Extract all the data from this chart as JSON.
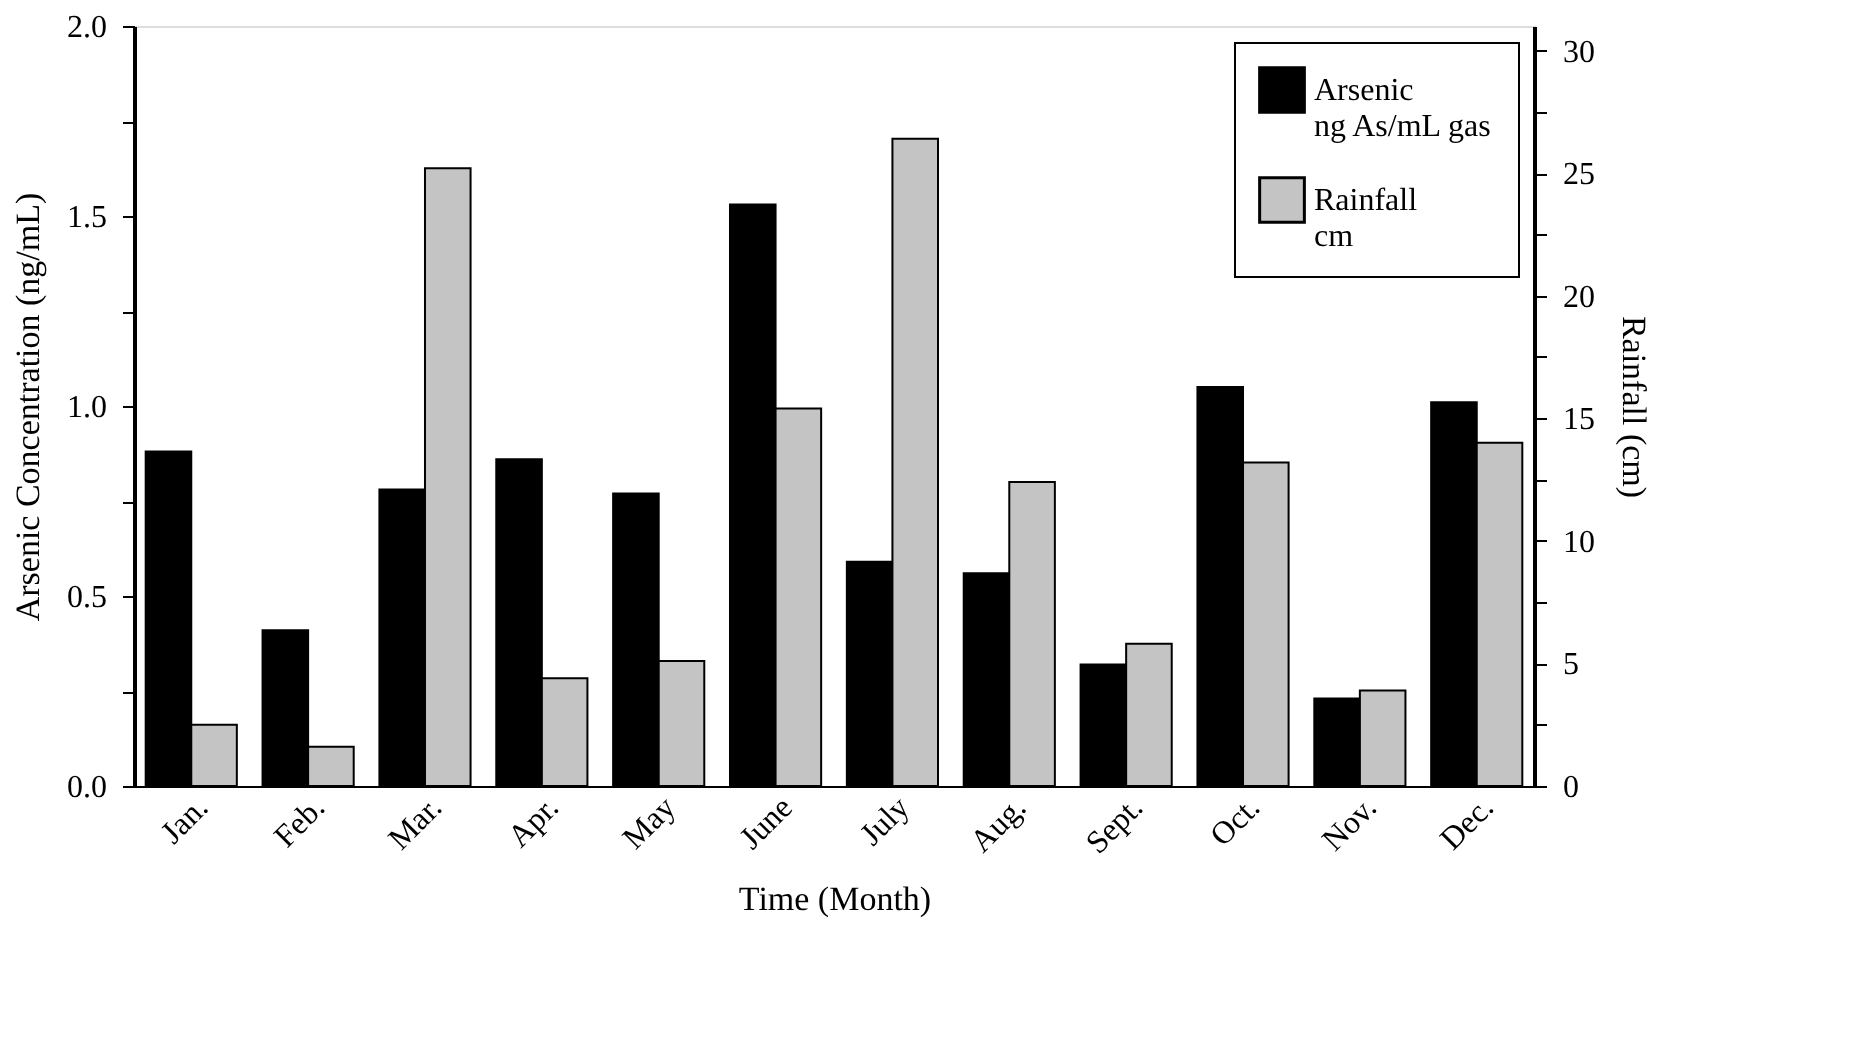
{
  "chart_data": {
    "type": "bar",
    "xlabel": "Time (Month)",
    "ylabel": "Arsenic Concentration (ng/mL)",
    "y2label": "Rainfall (cm)",
    "categories": [
      "Jan.",
      "Feb.",
      "Mar.",
      "Apr.",
      "May",
      "June",
      "July",
      "Aug.",
      "Sept.",
      "Oct.",
      "Nov.",
      "Dec."
    ],
    "series": [
      {
        "name": "Arsenic\nng As/mL gas",
        "color": "#000000",
        "values": [
          0.88,
          0.41,
          0.78,
          0.86,
          0.77,
          1.53,
          0.59,
          0.56,
          0.32,
          1.05,
          0.23,
          1.01
        ]
      },
      {
        "name": "Rainfall\ncm",
        "color": "#c4c4c4",
        "axis": "y2",
        "values": [
          2.5,
          1.6,
          25.2,
          4.4,
          5.1,
          15.4,
          26.4,
          12.4,
          5.8,
          13.2,
          3.9,
          14.0
        ]
      }
    ],
    "ylim": [
      0,
      2.0
    ],
    "yticks": [
      {
        "value": 0,
        "label": "0.0"
      },
      {
        "value": 0.25,
        "label": null
      },
      0.5,
      {
        "value": 0.75,
        "label": null
      },
      {
        "value": 1,
        "label": "1.0"
      },
      {
        "value": 1.25,
        "label": null
      },
      1.5,
      {
        "value": 1.75,
        "label": null
      },
      {
        "value": 2,
        "label": "2.0"
      }
    ],
    "y2lim": [
      0,
      31
    ],
    "y2ticks": [
      0,
      {
        "value": 2.5,
        "label": null
      },
      5,
      {
        "value": 7.5,
        "label": null
      },
      10,
      {
        "value": 12.5,
        "label": null
      },
      15,
      {
        "value": 17.5,
        "label": null
      },
      20,
      {
        "value": 22.5,
        "label": null
      },
      25,
      {
        "value": 27.5,
        "label": null
      },
      30
    ],
    "legend": "top right",
    "grid": false
  }
}
